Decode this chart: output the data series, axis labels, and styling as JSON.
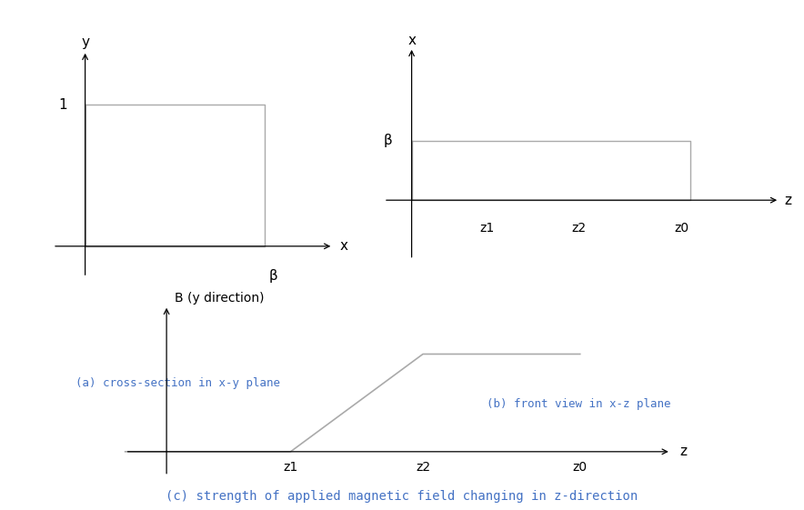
{
  "bg_color": "#ffffff",
  "text_color_caption": "#4472c4",
  "gray_line": "#aaaaaa",
  "caption_a": "(a) cross-section in x-y plane",
  "caption_b": "(b) front view in x-z plane",
  "caption_c": "(c) strength of applied magnetic field changing in z-direction",
  "panel_a": {
    "origin_label": "β",
    "x_label": "x",
    "y_label": "y",
    "tick_label_y": "1"
  },
  "panel_b": {
    "origin_label": "β",
    "x_label": "x",
    "z_label": "z",
    "z1_label": "z1",
    "z2_label": "z2",
    "z0_label": "z0"
  },
  "panel_c": {
    "B_label": "B (y direction)",
    "z_label": "z",
    "z1_label": "z1",
    "z2_label": "z2",
    "z0_label": "z0"
  }
}
